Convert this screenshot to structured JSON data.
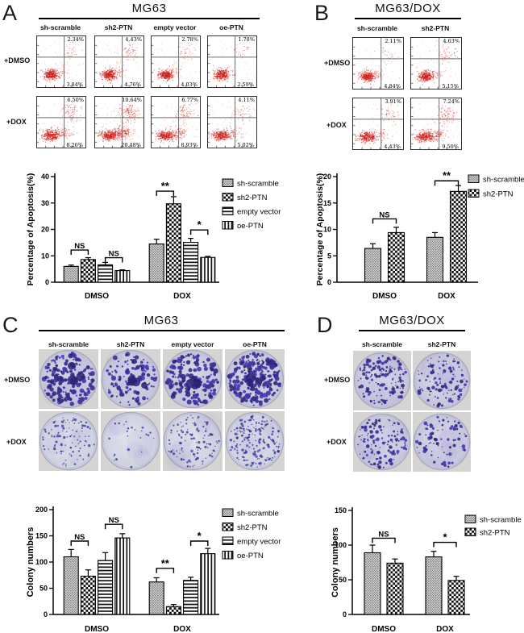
{
  "panels": {
    "A": {
      "label": "A",
      "title": "MG63",
      "col_headers": [
        "sh-scramble",
        "sh2-PTN",
        "empty vector",
        "oe-PTN"
      ],
      "row_labels": [
        "+DMSO",
        "+DOX"
      ],
      "flow_rows": [
        {
          "cells": [
            {
              "ur": "2.34%",
              "lr": "3.84%"
            },
            {
              "ur": "4.43%",
              "lr": "4.76%"
            },
            {
              "ur": "2.78%",
              "lr": "4.03%"
            },
            {
              "ur": "1.78%",
              "lr": "2.59%"
            }
          ]
        },
        {
          "cells": [
            {
              "ur": "6.50%",
              "lr": "8.26%"
            },
            {
              "ur": "10.64%",
              "lr": "20.48%"
            },
            {
              "ur": "6.77%",
              "lr": "8.93%"
            },
            {
              "ur": "4.11%",
              "lr": "5.02%"
            }
          ]
        }
      ]
    },
    "B": {
      "label": "B",
      "title": "MG63/DOX",
      "col_headers": [
        "sh-scramble",
        "sh2-PTN"
      ],
      "row_labels": [
        "+DMSO",
        "+DOX"
      ],
      "flow_rows": [
        {
          "cells": [
            {
              "ur": "2.11%",
              "lr": "4.84%"
            },
            {
              "ur": "4.63%",
              "lr": "5.15%"
            }
          ]
        },
        {
          "cells": [
            {
              "ur": "3.91%",
              "lr": "4.43%"
            },
            {
              "ur": "7.24%",
              "lr": "9.50%"
            }
          ]
        }
      ]
    },
    "C": {
      "label": "C",
      "title": "MG63",
      "col_headers": [
        "sh-scramble",
        "sh2-PTN",
        "empty vector",
        "oe-PTN"
      ],
      "row_labels": [
        "+DMSO",
        "+DOX"
      ]
    },
    "D": {
      "label": "D",
      "title": "MG63/DOX",
      "col_headers": [
        "sh-scramble",
        "sh2-PTN"
      ],
      "row_labels": [
        "+DMSO",
        "+DOX"
      ]
    }
  },
  "colors": {
    "flow_dots": "#cc1d17",
    "colony": "#4236a0",
    "dish_bg": "#cdd0e0",
    "axis": "#000000"
  },
  "chart_data": [
    {
      "id": "A",
      "type": "bar",
      "title": "",
      "xlabel": "",
      "ylabel": "Percentage of Apoptosis(%)",
      "categories": [
        "DMSO",
        "DOX"
      ],
      "ylim": [
        0,
        40
      ],
      "yticks": [
        0,
        10,
        20,
        30,
        40
      ],
      "grid": false,
      "legend_position": "right",
      "series": [
        {
          "name": "sh-scramble",
          "pattern": "stipple",
          "values": [
            6.0,
            14.5
          ],
          "errors": [
            0.5,
            1.8
          ]
        },
        {
          "name": "sh2-PTN",
          "pattern": "checker",
          "values": [
            8.6,
            29.7
          ],
          "errors": [
            0.7,
            2.7
          ]
        },
        {
          "name": "empty vector",
          "pattern": "hlines",
          "values": [
            6.6,
            15.1
          ],
          "errors": [
            0.9,
            1.5
          ]
        },
        {
          "name": "oe-PTN",
          "pattern": "vlines",
          "values": [
            4.4,
            9.4
          ],
          "errors": [
            0.3,
            0.4
          ]
        }
      ],
      "annotations": [
        {
          "label": "NS",
          "cat": 0,
          "s1": 0,
          "s2": 1,
          "y": 12.2
        },
        {
          "label": "NS",
          "cat": 0,
          "s1": 2,
          "s2": 3,
          "y": 9.3
        },
        {
          "label": "**",
          "cat": 1,
          "s1": 0,
          "s2": 1,
          "y": 34.5
        },
        {
          "label": "*",
          "cat": 1,
          "s1": 2,
          "s2": 3,
          "y": 19.8
        }
      ]
    },
    {
      "id": "B",
      "type": "bar",
      "title": "",
      "xlabel": "",
      "ylabel": "Percentage of Apoptosis(%)",
      "categories": [
        "DMSO",
        "DOX"
      ],
      "ylim": [
        0,
        20
      ],
      "yticks": [
        0,
        5,
        10,
        15,
        20
      ],
      "grid": false,
      "legend_position": "right",
      "series": [
        {
          "name": "sh-scramble",
          "pattern": "stipple",
          "values": [
            6.4,
            8.5
          ],
          "errors": [
            0.9,
            0.9
          ]
        },
        {
          "name": "sh2-PTN",
          "pattern": "checker",
          "values": [
            9.4,
            17.2
          ],
          "errors": [
            1.0,
            1.1
          ]
        }
      ],
      "annotations": [
        {
          "label": "NS",
          "cat": 0,
          "s1": 0,
          "s2": 1,
          "y": 12.0
        },
        {
          "label": "**",
          "cat": 1,
          "s1": 0,
          "s2": 1,
          "y": 19.2
        }
      ]
    },
    {
      "id": "C",
      "type": "bar",
      "title": "",
      "xlabel": "",
      "ylabel": "Colony numbers",
      "categories": [
        "DMSO",
        "DOX"
      ],
      "ylim": [
        0,
        200
      ],
      "yticks": [
        0,
        50,
        100,
        150,
        200
      ],
      "grid": false,
      "legend_position": "right",
      "series": [
        {
          "name": "sh-scramble",
          "pattern": "stipple",
          "values": [
            110,
            62
          ],
          "errors": [
            14,
            8
          ]
        },
        {
          "name": "sh2-PTN",
          "pattern": "checker",
          "values": [
            73,
            15
          ],
          "errors": [
            12,
            4
          ]
        },
        {
          "name": "empty vector",
          "pattern": "hlines",
          "values": [
            103,
            65
          ],
          "errors": [
            15,
            6
          ]
        },
        {
          "name": "oe-PTN",
          "pattern": "vlines",
          "values": [
            146,
            116
          ],
          "errors": [
            8,
            10
          ]
        }
      ],
      "annotations": [
        {
          "label": "NS",
          "cat": 0,
          "s1": 0,
          "s2": 1,
          "y": 140
        },
        {
          "label": "NS",
          "cat": 0,
          "s1": 2,
          "s2": 3,
          "y": 172
        },
        {
          "label": "**",
          "cat": 1,
          "s1": 0,
          "s2": 1,
          "y": 88
        },
        {
          "label": "*",
          "cat": 1,
          "s1": 2,
          "s2": 3,
          "y": 140
        }
      ]
    },
    {
      "id": "D",
      "type": "bar",
      "title": "",
      "xlabel": "",
      "ylabel": "Colony numbers",
      "categories": [
        "DMSO",
        "DOX"
      ],
      "ylim": [
        0,
        150
      ],
      "yticks": [
        0,
        50,
        100,
        150
      ],
      "grid": false,
      "legend_position": "right",
      "series": [
        {
          "name": "sh-scramble",
          "pattern": "stipple",
          "values": [
            89,
            83
          ],
          "errors": [
            11,
            8
          ]
        },
        {
          "name": "sh2-PTN",
          "pattern": "checker",
          "values": [
            74,
            49
          ],
          "errors": [
            6,
            6
          ]
        }
      ],
      "annotations": [
        {
          "label": "NS",
          "cat": 0,
          "s1": 0,
          "s2": 1,
          "y": 110
        },
        {
          "label": "*",
          "cat": 1,
          "s1": 0,
          "s2": 1,
          "y": 104
        }
      ]
    }
  ]
}
